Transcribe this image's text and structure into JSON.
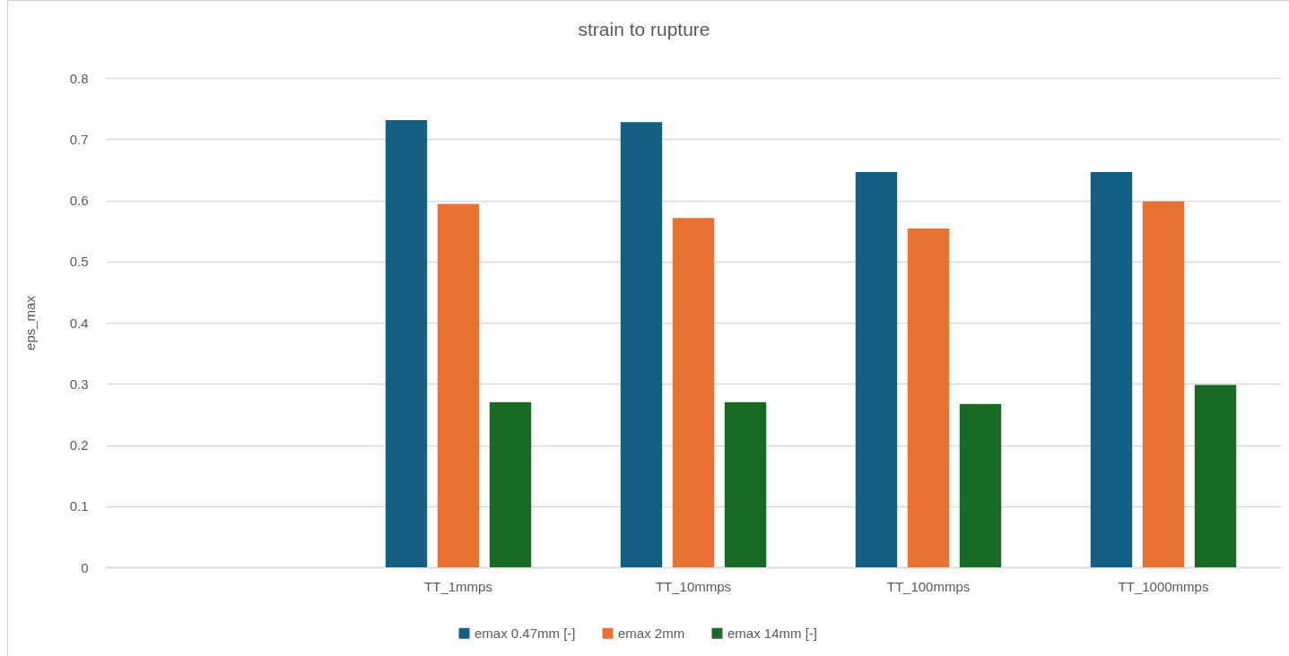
{
  "chart_data": {
    "type": "bar",
    "title": "strain to rupture",
    "ylabel": "eps_max",
    "categories": [
      null,
      "TT_1mmps",
      "TT_10mmps",
      "TT_100mmps",
      "TT_1000mmps"
    ],
    "series": [
      {
        "name": "emax 0.47mm [-]",
        "color": "#156082",
        "values": [
          null,
          0.731,
          0.728,
          0.646,
          0.646
        ]
      },
      {
        "name": "emax 2mm",
        "color": "#e97132",
        "values": [
          null,
          0.594,
          0.571,
          0.554,
          0.598
        ]
      },
      {
        "name": "emax 14mm [-]",
        "color": "#196b24",
        "values": [
          null,
          0.27,
          0.27,
          0.267,
          0.298
        ]
      }
    ],
    "ylim": [
      0,
      0.8
    ],
    "yticks": [
      0,
      0.1,
      0.2,
      0.3,
      0.4,
      0.5,
      0.6,
      0.7,
      0.8
    ],
    "grid": "y",
    "legend": "bottom"
  }
}
